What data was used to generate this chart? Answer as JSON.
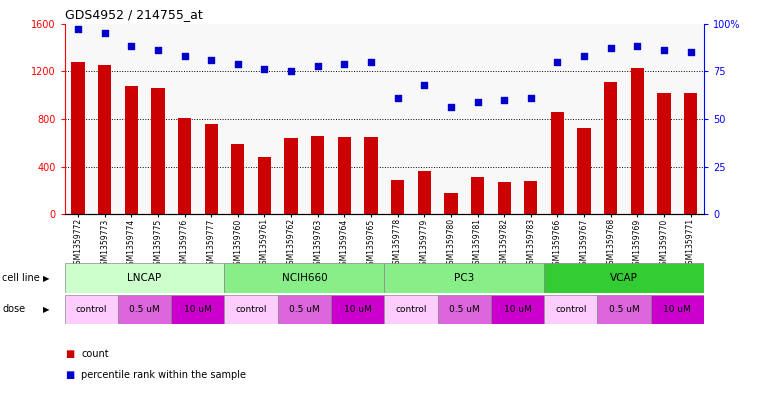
{
  "title": "GDS4952 / 214755_at",
  "samples": [
    "GSM1359772",
    "GSM1359773",
    "GSM1359774",
    "GSM1359775",
    "GSM1359776",
    "GSM1359777",
    "GSM1359760",
    "GSM1359761",
    "GSM1359762",
    "GSM1359763",
    "GSM1359764",
    "GSM1359765",
    "GSM1359778",
    "GSM1359779",
    "GSM1359780",
    "GSM1359781",
    "GSM1359782",
    "GSM1359783",
    "GSM1359766",
    "GSM1359767",
    "GSM1359768",
    "GSM1359769",
    "GSM1359770",
    "GSM1359771"
  ],
  "bar_values": [
    1280,
    1250,
    1080,
    1060,
    810,
    760,
    590,
    480,
    640,
    660,
    650,
    650,
    290,
    360,
    175,
    310,
    270,
    280,
    860,
    720,
    1110,
    1230,
    1020,
    1020
  ],
  "dot_values": [
    97,
    95,
    88,
    86,
    83,
    81,
    79,
    76,
    75,
    78,
    79,
    80,
    61,
    68,
    56,
    59,
    60,
    61,
    80,
    83,
    87,
    88,
    86,
    85
  ],
  "bar_color": "#cc0000",
  "dot_color": "#0000cc",
  "ylim_left": [
    0,
    1600
  ],
  "ylim_right": [
    0,
    100
  ],
  "yticks_left": [
    0,
    400,
    800,
    1200,
    1600
  ],
  "yticks_right": [
    0,
    25,
    50,
    75,
    100
  ],
  "cell_lines": [
    {
      "name": "LNCAP",
      "start": 0,
      "end": 6,
      "color": "#ccffcc"
    },
    {
      "name": "NCIH660",
      "start": 6,
      "end": 12,
      "color": "#88ee88"
    },
    {
      "name": "PC3",
      "start": 12,
      "end": 18,
      "color": "#88ee88"
    },
    {
      "name": "VCAP",
      "start": 18,
      "end": 24,
      "color": "#33cc33"
    }
  ],
  "doses": [
    {
      "label": "control",
      "start": 0,
      "end": 2,
      "color": "#ffccff"
    },
    {
      "label": "0.5 uM",
      "start": 2,
      "end": 4,
      "color": "#dd66dd"
    },
    {
      "label": "10 uM",
      "start": 4,
      "end": 6,
      "color": "#cc00cc"
    },
    {
      "label": "control",
      "start": 6,
      "end": 8,
      "color": "#ffccff"
    },
    {
      "label": "0.5 uM",
      "start": 8,
      "end": 10,
      "color": "#dd66dd"
    },
    {
      "label": "10 uM",
      "start": 10,
      "end": 12,
      "color": "#cc00cc"
    },
    {
      "label": "control",
      "start": 12,
      "end": 14,
      "color": "#ffccff"
    },
    {
      "label": "0.5 uM",
      "start": 14,
      "end": 16,
      "color": "#dd66dd"
    },
    {
      "label": "10 uM",
      "start": 16,
      "end": 18,
      "color": "#cc00cc"
    },
    {
      "label": "control",
      "start": 18,
      "end": 20,
      "color": "#ffccff"
    },
    {
      "label": "0.5 uM",
      "start": 20,
      "end": 22,
      "color": "#dd66dd"
    },
    {
      "label": "10 uM",
      "start": 22,
      "end": 24,
      "color": "#cc00cc"
    }
  ],
  "cell_line_label": "cell line",
  "dose_label": "dose",
  "legend_count_color": "#cc0000",
  "legend_dot_color": "#0000cc",
  "bg_color": "#f8f8f8"
}
